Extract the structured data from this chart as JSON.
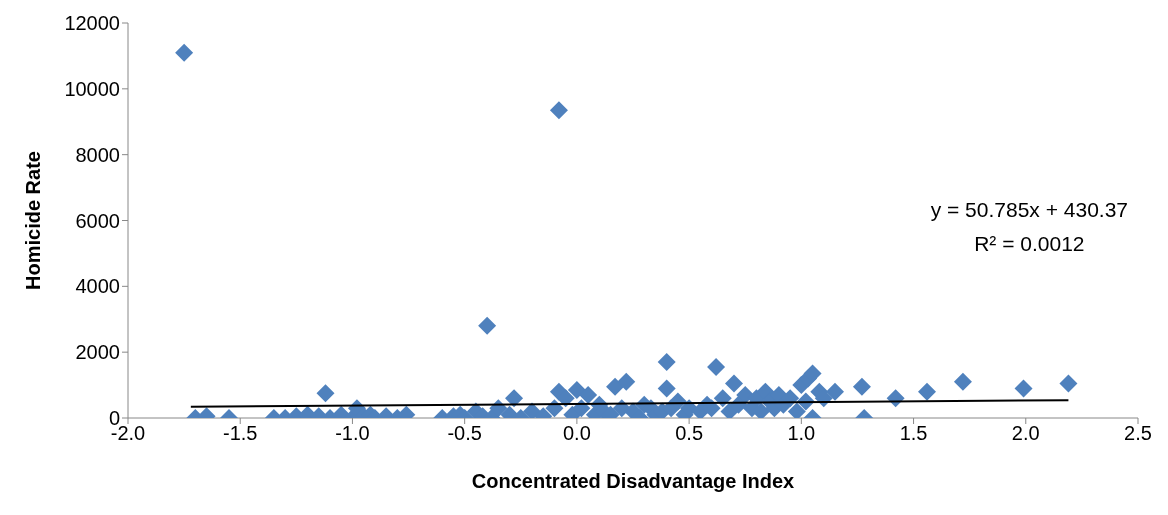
{
  "chart_data": {
    "type": "scatter",
    "xlabel": "Concentrated Disadvantage Index",
    "ylabel": "Homicide Rate",
    "xlim": [
      -2.0,
      2.5
    ],
    "ylim": [
      0,
      12000
    ],
    "xticks": [
      {
        "value": -2,
        "label": "-2.0"
      },
      {
        "value": -1.5,
        "label": "-1.5"
      },
      {
        "value": -1,
        "label": "-1.0"
      },
      {
        "value": -0.5,
        "label": "-0.5"
      },
      {
        "value": 0,
        "label": "0.0"
      },
      {
        "value": 0.5,
        "label": "0.5"
      },
      {
        "value": 1,
        "label": "1.0"
      },
      {
        "value": 1.5,
        "label": "1.5"
      },
      {
        "value": 2,
        "label": "2.0"
      },
      {
        "value": 2.5,
        "label": "2.5"
      }
    ],
    "yticks": [
      0,
      2000,
      4000,
      6000,
      8000,
      10000,
      12000
    ],
    "annotations": [
      "y = 50.785x + 430.37",
      "R² = 0.0012"
    ],
    "series": [
      {
        "color": "#4f81bd",
        "marker": "diamond",
        "x": [
          -1.75,
          -1.7,
          -1.65,
          -1.55,
          -1.35,
          -1.3,
          -1.25,
          -1.2,
          -1.15,
          -1.12,
          -1.1,
          -1.05,
          -1.0,
          -0.98,
          -0.95,
          -0.92,
          -0.9,
          -0.85,
          -0.8,
          -0.76,
          -0.6,
          -0.55,
          -0.52,
          -0.5,
          -0.45,
          -0.42,
          -0.4,
          -0.38,
          -0.35,
          -0.3,
          -0.28,
          -0.25,
          -0.2,
          -0.15,
          -0.1,
          -0.08,
          -0.08,
          -0.05,
          -0.02,
          0.0,
          0.02,
          0.05,
          0.08,
          0.1,
          0.12,
          0.15,
          0.17,
          0.2,
          0.22,
          0.25,
          0.28,
          0.3,
          0.33,
          0.35,
          0.38,
          0.4,
          0.4,
          0.42,
          0.45,
          0.48,
          0.5,
          0.55,
          0.58,
          0.6,
          0.62,
          0.65,
          0.68,
          0.7,
          0.72,
          0.75,
          0.78,
          0.8,
          0.82,
          0.84,
          0.86,
          0.88,
          0.9,
          0.92,
          0.95,
          0.98,
          1.0,
          1.02,
          1.03,
          1.05,
          1.05,
          1.08,
          1.1,
          1.15,
          1.27,
          1.28,
          1.42,
          1.56,
          1.72,
          1.99,
          2.19
        ],
        "values": [
          11100,
          0,
          50,
          0,
          0,
          0,
          50,
          100,
          50,
          750,
          0,
          100,
          0,
          300,
          50,
          100,
          0,
          50,
          0,
          100,
          0,
          50,
          100,
          0,
          200,
          50,
          2800,
          0,
          300,
          100,
          600,
          0,
          200,
          50,
          300,
          9350,
          800,
          600,
          100,
          850,
          300,
          700,
          100,
          400,
          200,
          100,
          950,
          300,
          1100,
          200,
          0,
          400,
          300,
          100,
          200,
          1700,
          900,
          300,
          500,
          100,
          300,
          200,
          400,
          300,
          1550,
          600,
          200,
          1050,
          400,
          700,
          300,
          600,
          200,
          800,
          500,
          300,
          700,
          400,
          600,
          200,
          1000,
          500,
          1200,
          1350,
          0,
          800,
          600,
          800,
          950,
          0,
          600,
          800,
          1100,
          900,
          1050
        ]
      },
      {
        "type": "line",
        "marker": "none",
        "color": "#000000",
        "x": [
          -1.72,
          2.19
        ],
        "values": [
          340,
          540
        ]
      }
    ]
  }
}
